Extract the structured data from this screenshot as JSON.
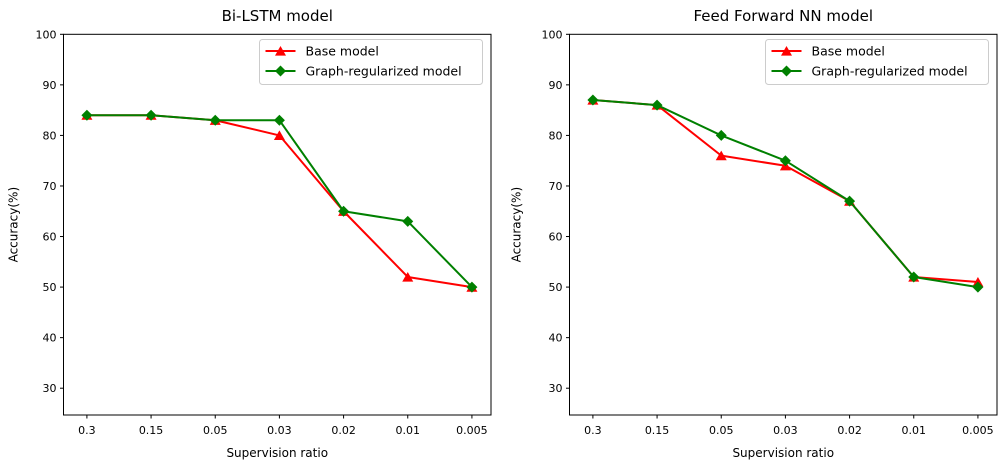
{
  "figure": {
    "background": "#ffffff",
    "axis_color": "#000000",
    "legend_border_color": "#cccccc",
    "legend_background": "#ffffff"
  },
  "chart_data": [
    {
      "type": "line",
      "title": "Bi-LSTM model",
      "xlabel": "Supervision ratio",
      "ylabel": "Accuracy(%)",
      "categories": [
        "0.3",
        "0.15",
        "0.05",
        "0.03",
        "0.02",
        "0.01",
        "0.005"
      ],
      "yticks": [
        30,
        40,
        50,
        60,
        70,
        80,
        90,
        100
      ],
      "ylim": [
        24.7,
        100
      ],
      "grid": false,
      "legend": {
        "position": "upper right",
        "entries": [
          "Base model",
          "Graph-regularized model"
        ]
      },
      "series": [
        {
          "name": "Base model",
          "color": "#ff0000",
          "marker": "triangle-up",
          "values": [
            84,
            84,
            83,
            80,
            65,
            52,
            50
          ]
        },
        {
          "name": "Graph-regularized model",
          "color": "#008000",
          "marker": "diamond",
          "values": [
            84,
            84,
            83,
            83,
            65,
            63,
            50
          ]
        }
      ]
    },
    {
      "type": "line",
      "title": "Feed Forward NN model",
      "xlabel": "Supervision ratio",
      "ylabel": "Accuracy(%)",
      "categories": [
        "0.3",
        "0.15",
        "0.05",
        "0.03",
        "0.02",
        "0.01",
        "0.005"
      ],
      "yticks": [
        30,
        40,
        50,
        60,
        70,
        80,
        90,
        100
      ],
      "ylim": [
        24.7,
        100
      ],
      "grid": false,
      "legend": {
        "position": "upper right",
        "entries": [
          "Base model",
          "Graph-regularized model"
        ]
      },
      "series": [
        {
          "name": "Base model",
          "color": "#ff0000",
          "marker": "triangle-up",
          "values": [
            87,
            86,
            76,
            74,
            67,
            52,
            51
          ]
        },
        {
          "name": "Graph-regularized model",
          "color": "#008000",
          "marker": "diamond",
          "values": [
            87,
            86,
            80,
            75,
            67,
            52,
            50
          ]
        }
      ]
    }
  ]
}
